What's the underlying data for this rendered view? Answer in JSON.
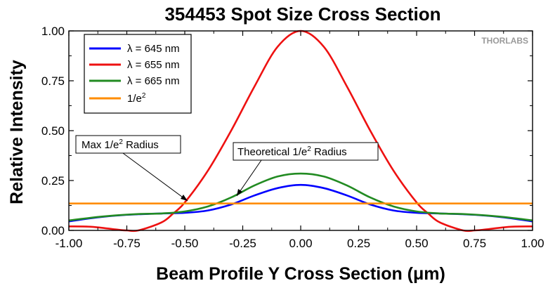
{
  "chart_data": {
    "type": "line",
    "title": "354453 Spot Size Cross Section",
    "xlabel": "Beam Profile Y Cross Section (μm)",
    "ylabel": "Relative Intensity",
    "xlim": [
      -1.0,
      1.0
    ],
    "ylim": [
      0.0,
      1.0
    ],
    "x_ticks": [
      "-1.00",
      "-0.75",
      "-0.50",
      "-0.25",
      "0.00",
      "0.25",
      "0.50",
      "0.75",
      "1.00"
    ],
    "y_ticks": [
      "0.00",
      "0.25",
      "0.50",
      "0.75",
      "1.00"
    ],
    "grid": false,
    "legend_position": "top-left",
    "watermark": "THORLABS",
    "series": [
      {
        "name": "λ = 645 nm",
        "color": "#0000ff",
        "x": [
          -1.0,
          -0.9,
          -0.8,
          -0.7,
          -0.6,
          -0.5,
          -0.4,
          -0.3,
          -0.2,
          -0.1,
          0.0,
          0.1,
          0.2,
          0.3,
          0.4,
          0.5,
          0.6,
          0.7,
          0.8,
          0.9,
          1.0
        ],
        "y": [
          0.045,
          0.062,
          0.074,
          0.081,
          0.085,
          0.088,
          0.1,
          0.13,
          0.175,
          0.212,
          0.228,
          0.212,
          0.175,
          0.13,
          0.1,
          0.088,
          0.085,
          0.081,
          0.074,
          0.062,
          0.045
        ]
      },
      {
        "name": "λ = 655 nm",
        "color": "#ee1111",
        "x": [
          -1.0,
          -0.9,
          -0.8,
          -0.75,
          -0.7,
          -0.6,
          -0.55,
          -0.5,
          -0.4,
          -0.3,
          -0.2,
          -0.1,
          0.0,
          0.1,
          0.2,
          0.3,
          0.4,
          0.5,
          0.55,
          0.6,
          0.7,
          0.75,
          0.8,
          0.9,
          1.0
        ],
        "y": [
          0.02,
          0.018,
          0.005,
          0.0,
          0.0,
          0.04,
          0.085,
          0.14,
          0.3,
          0.5,
          0.72,
          0.92,
          1.0,
          0.92,
          0.72,
          0.5,
          0.3,
          0.14,
          0.085,
          0.04,
          0.0,
          0.0,
          0.005,
          0.018,
          0.02
        ]
      },
      {
        "name": "λ = 665 nm",
        "color": "#228b22",
        "x": [
          -1.0,
          -0.9,
          -0.8,
          -0.7,
          -0.6,
          -0.5,
          -0.4,
          -0.3,
          -0.2,
          -0.1,
          0.0,
          0.1,
          0.2,
          0.3,
          0.4,
          0.5,
          0.6,
          0.7,
          0.8,
          0.9,
          1.0
        ],
        "y": [
          0.05,
          0.064,
          0.075,
          0.082,
          0.085,
          0.095,
          0.12,
          0.165,
          0.225,
          0.27,
          0.285,
          0.27,
          0.225,
          0.165,
          0.12,
          0.095,
          0.085,
          0.082,
          0.075,
          0.064,
          0.05
        ]
      },
      {
        "name": "1/e²",
        "legend_text": "1/e",
        "legend_sup": "2",
        "color": "#ff8c00",
        "x": [
          -1.0,
          1.0
        ],
        "y": [
          0.135,
          0.135
        ]
      }
    ],
    "annotations": [
      {
        "text": "Max 1/e",
        "sup": "2",
        "rest": " Radius",
        "target": [
          -0.52,
          0.138
        ]
      },
      {
        "text": "Theoretical 1/e",
        "sup": "2",
        "rest": " Radius",
        "target": [
          -0.35,
          0.17
        ]
      }
    ]
  }
}
